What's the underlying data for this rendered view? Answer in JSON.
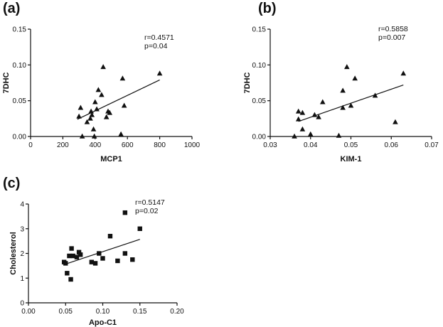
{
  "chart_data": [
    {
      "type": "scatter",
      "panel_label": "(a)",
      "xlabel": "MCP1",
      "ylabel": "7DHC",
      "xlim": [
        0,
        1000
      ],
      "ylim": [
        0,
        0.15
      ],
      "xticks": [
        "0",
        "200",
        "400",
        "600",
        "800",
        "1000"
      ],
      "yticks": [
        "0.00",
        "0.05",
        "0.10",
        "0.15"
      ],
      "xtick_values": [
        0,
        200,
        400,
        600,
        800,
        1000
      ],
      "ytick_values": [
        0,
        0.05,
        0.1,
        0.15
      ],
      "marker": "triangle",
      "stats": [
        "r=0.4571",
        "p=0.04"
      ],
      "fit_line": [
        [
          290,
          0.024
        ],
        [
          800,
          0.079
        ]
      ],
      "points": [
        [
          300,
          0.028
        ],
        [
          310,
          0.04
        ],
        [
          320,
          0.0
        ],
        [
          350,
          0.02
        ],
        [
          370,
          0.025
        ],
        [
          375,
          0.035
        ],
        [
          380,
          0.03
        ],
        [
          390,
          0.01
        ],
        [
          395,
          0.0
        ],
        [
          400,
          0.048
        ],
        [
          410,
          0.038
        ],
        [
          420,
          0.065
        ],
        [
          440,
          0.058
        ],
        [
          450,
          0.097
        ],
        [
          470,
          0.027
        ],
        [
          480,
          0.035
        ],
        [
          490,
          0.033
        ],
        [
          560,
          0.003
        ],
        [
          570,
          0.081
        ],
        [
          580,
          0.043
        ],
        [
          800,
          0.088
        ]
      ]
    },
    {
      "type": "scatter",
      "panel_label": "(b)",
      "xlabel": "KIM-1",
      "ylabel": "7DHC",
      "xlim": [
        0.03,
        0.07
      ],
      "ylim": [
        0,
        0.15
      ],
      "xticks": [
        "0.03",
        "0.04",
        "0.05",
        "0.06",
        "0.07"
      ],
      "yticks": [
        "0.00",
        "0.05",
        "0.10",
        "0.15"
      ],
      "xtick_values": [
        0.03,
        0.04,
        0.05,
        0.06,
        0.07
      ],
      "ytick_values": [
        0,
        0.05,
        0.1,
        0.15
      ],
      "marker": "triangle",
      "stats": [
        "r=0.5858",
        "p=0.007"
      ],
      "fit_line": [
        [
          0.037,
          0.021
        ],
        [
          0.063,
          0.072
        ]
      ],
      "points": [
        [
          0.036,
          0.0
        ],
        [
          0.037,
          0.024
        ],
        [
          0.037,
          0.035
        ],
        [
          0.038,
          0.033
        ],
        [
          0.038,
          0.01
        ],
        [
          0.04,
          0.003
        ],
        [
          0.041,
          0.03
        ],
        [
          0.042,
          0.027
        ],
        [
          0.043,
          0.048
        ],
        [
          0.047,
          0.001
        ],
        [
          0.048,
          0.04
        ],
        [
          0.048,
          0.064
        ],
        [
          0.049,
          0.097
        ],
        [
          0.05,
          0.043
        ],
        [
          0.051,
          0.081
        ],
        [
          0.056,
          0.057
        ],
        [
          0.061,
          0.02
        ],
        [
          0.063,
          0.088
        ]
      ]
    },
    {
      "type": "scatter",
      "panel_label": "(c)",
      "xlabel": "Apo-C1",
      "ylabel": "Cholesterol",
      "xlim": [
        0,
        0.2
      ],
      "ylim": [
        0,
        4
      ],
      "xticks": [
        "0.00",
        "0.05",
        "0.10",
        "0.15",
        "0.20"
      ],
      "yticks": [
        "0",
        "1",
        "2",
        "3",
        "4"
      ],
      "xtick_values": [
        0,
        0.05,
        0.1,
        0.15,
        0.2
      ],
      "ytick_values": [
        0,
        1,
        2,
        3,
        4
      ],
      "marker": "square",
      "stats": [
        "r=0.5147",
        "p=0.02"
      ],
      "fit_line": [
        [
          0.048,
          1.55
        ],
        [
          0.15,
          2.57
        ]
      ],
      "points": [
        [
          0.048,
          1.65
        ],
        [
          0.05,
          1.6
        ],
        [
          0.052,
          1.2
        ],
        [
          0.055,
          1.9
        ],
        [
          0.057,
          0.95
        ],
        [
          0.058,
          2.2
        ],
        [
          0.06,
          1.9
        ],
        [
          0.065,
          1.85
        ],
        [
          0.068,
          2.05
        ],
        [
          0.07,
          1.95
        ],
        [
          0.085,
          1.65
        ],
        [
          0.09,
          1.6
        ],
        [
          0.095,
          2.0
        ],
        [
          0.1,
          1.8
        ],
        [
          0.11,
          2.7
        ],
        [
          0.12,
          1.7
        ],
        [
          0.13,
          3.65
        ],
        [
          0.13,
          2.0
        ],
        [
          0.14,
          1.75
        ],
        [
          0.15,
          3.0
        ]
      ]
    }
  ]
}
